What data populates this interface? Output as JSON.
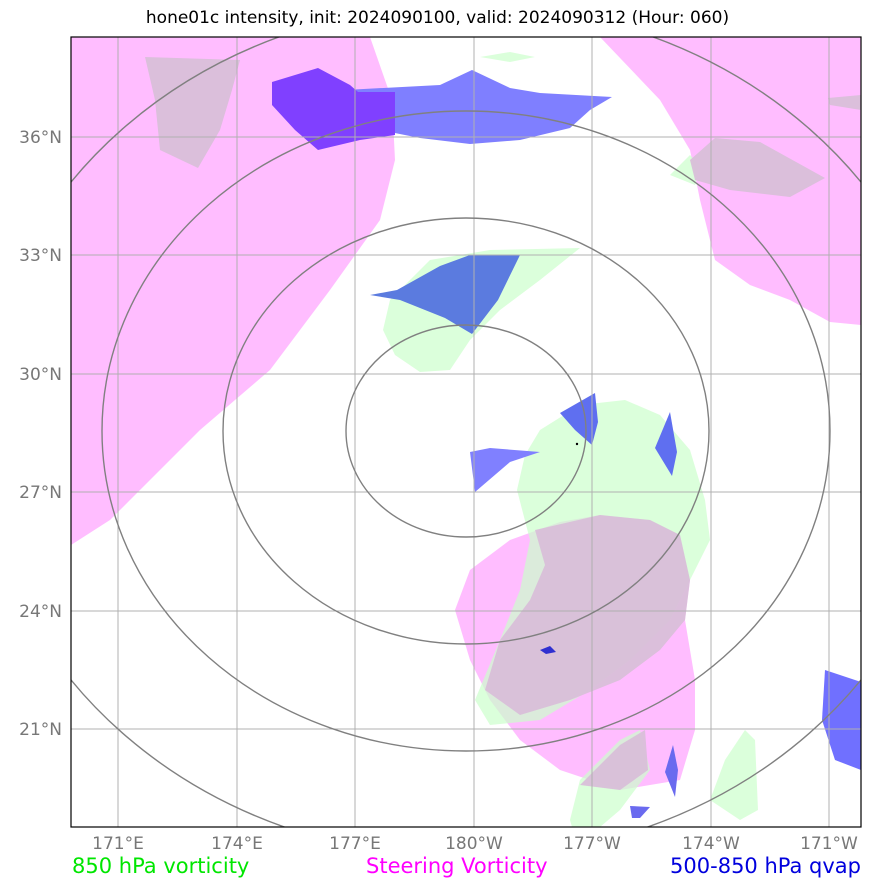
{
  "title": "hone01c intensity, init: 2024090100, valid: 2024090312 (Hour: 060)",
  "map": {
    "lat_ticks": [
      "36°N",
      "33°N",
      "30°N",
      "27°N",
      "24°N",
      "21°N"
    ],
    "lon_ticks": [
      "171°E",
      "174°E",
      "177°E",
      "180°W",
      "177°W",
      "174°W",
      "171°W"
    ],
    "colors": {
      "vort850": "#ccffcc",
      "steering": "#ff99ff",
      "qvap": "#4444ff",
      "rings": "#808080",
      "grid": "#b0b0b0"
    }
  },
  "legend": {
    "vort850": "850 hPa vorticity",
    "steering": "Steering Vorticity",
    "qvap": "500-850 hPa qvap"
  }
}
